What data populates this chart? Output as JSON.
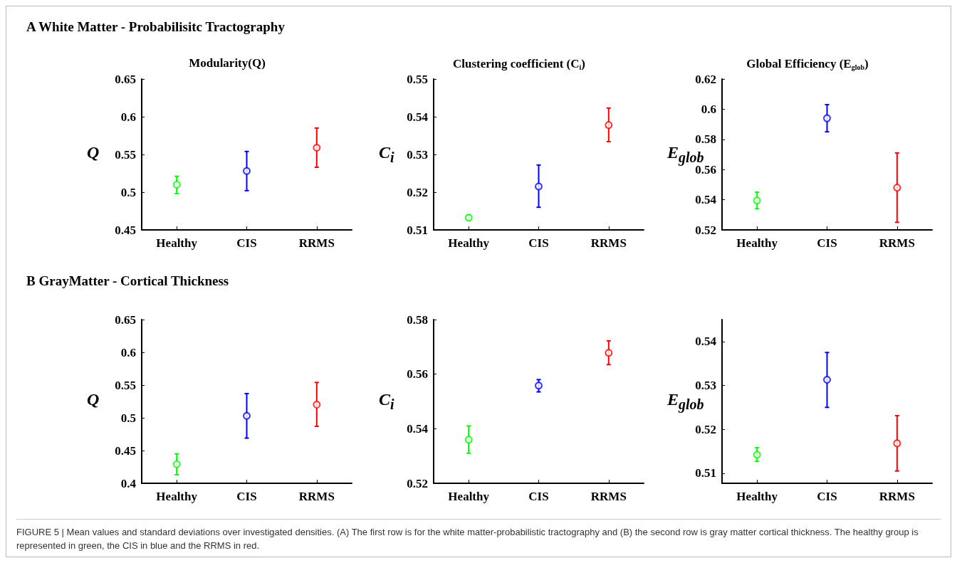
{
  "chart_data": [
    {
      "type": "scatter",
      "subtitle": "A  White Matter - Probabilisitc Tractography",
      "title": "Modularity(Q)",
      "ylabel": "Q",
      "categories": [
        "Healthy",
        "CIS",
        "RRMS"
      ],
      "values": [
        0.51,
        0.528,
        0.559
      ],
      "errors": [
        [
          0.498,
          0.521
        ],
        [
          0.502,
          0.554
        ],
        [
          0.533,
          0.585
        ]
      ],
      "colors": [
        "#00ff00",
        "#0000ff",
        "#ff0000"
      ],
      "marker": "circle",
      "ylim": [
        0.45,
        0.65
      ],
      "yticks": [
        0.45,
        0.5,
        0.55,
        0.6,
        0.65
      ]
    },
    {
      "type": "scatter",
      "title": "Clustering coefficient (C$_{i}$)",
      "ylabel": "C$_{i}$",
      "categories": [
        "Healthy",
        "CIS",
        "RRMS"
      ],
      "values": [
        0.5132,
        0.5215,
        0.5378
      ],
      "errors": [
        [
          0.5126,
          0.514
        ],
        [
          0.516,
          0.5272
        ],
        [
          0.5334,
          0.5423
        ]
      ],
      "colors": [
        "#00ff00",
        "#0000ff",
        "#ff0000"
      ],
      "marker": "circle",
      "ylim": [
        0.51,
        0.55
      ],
      "yticks": [
        0.51,
        0.52,
        0.53,
        0.54,
        0.55
      ]
    },
    {
      "type": "scatter",
      "title": "Global Efficiency (E$_{glob}$)",
      "ylabel": "E$_{glob}$",
      "categories": [
        "Healthy",
        "CIS",
        "RRMS"
      ],
      "values": [
        0.5395,
        0.594,
        0.548
      ],
      "errors": [
        [
          0.534,
          0.545
        ],
        [
          0.585,
          0.603
        ],
        [
          0.525,
          0.571
        ]
      ],
      "colors": [
        "#00ff00",
        "#0000ff",
        "#ff0000"
      ],
      "marker": "circle",
      "ylim": [
        0.52,
        0.62
      ],
      "yticks": [
        0.52,
        0.54,
        0.56,
        0.58,
        0.6,
        0.62
      ]
    },
    {
      "type": "scatter",
      "subtitle": "B  GrayMatter - Cortical Thickness",
      "ylabel": "Q",
      "categories": [
        "Healthy",
        "CIS",
        "RRMS"
      ],
      "values": [
        0.429,
        0.503,
        0.52
      ],
      "errors": [
        [
          0.413,
          0.445
        ],
        [
          0.469,
          0.537
        ],
        [
          0.487,
          0.554
        ]
      ],
      "colors": [
        "#00ff00",
        "#0000ff",
        "#ff0000"
      ],
      "marker": "circle",
      "ylim": [
        0.4,
        0.65
      ],
      "yticks": [
        0.4,
        0.45,
        0.5,
        0.55,
        0.6,
        0.65
      ]
    },
    {
      "type": "scatter",
      "ylabel": "C$_{i}$",
      "categories": [
        "Healthy",
        "CIS",
        "RRMS"
      ],
      "values": [
        0.536,
        0.5558,
        0.5678
      ],
      "errors": [
        [
          0.531,
          0.541
        ],
        [
          0.5535,
          0.558
        ],
        [
          0.5635,
          0.5722
        ]
      ],
      "colors": [
        "#00ff00",
        "#0000ff",
        "#ff0000"
      ],
      "marker": "circle",
      "ylim": [
        0.52,
        0.58
      ],
      "yticks": [
        0.52,
        0.54,
        0.56,
        0.58
      ]
    },
    {
      "type": "scatter",
      "ylabel": "E$_{glob}$",
      "categories": [
        "Healthy",
        "CIS",
        "RRMS"
      ],
      "values": [
        0.5142,
        0.5313,
        0.5168
      ],
      "errors": [
        [
          0.5127,
          0.5158
        ],
        [
          0.525,
          0.5375
        ],
        [
          0.5105,
          0.5231
        ]
      ],
      "colors": [
        "#00ff00",
        "#0000ff",
        "#ff0000"
      ],
      "marker": "circle",
      "ylim": [
        0.5077,
        0.545
      ],
      "yticks": [
        0.51,
        0.52,
        0.53,
        0.54
      ],
      "annotations": [
        "FIGURE 5 | Mean values and standard deviations over investigated densities. (A) The first row is for the white matter-probabilistic tractography and (B) the second row is gray matter cortical thickness. The healthy group is represented in green, the CIS in blue and the RRMS in red."
      ]
    }
  ]
}
